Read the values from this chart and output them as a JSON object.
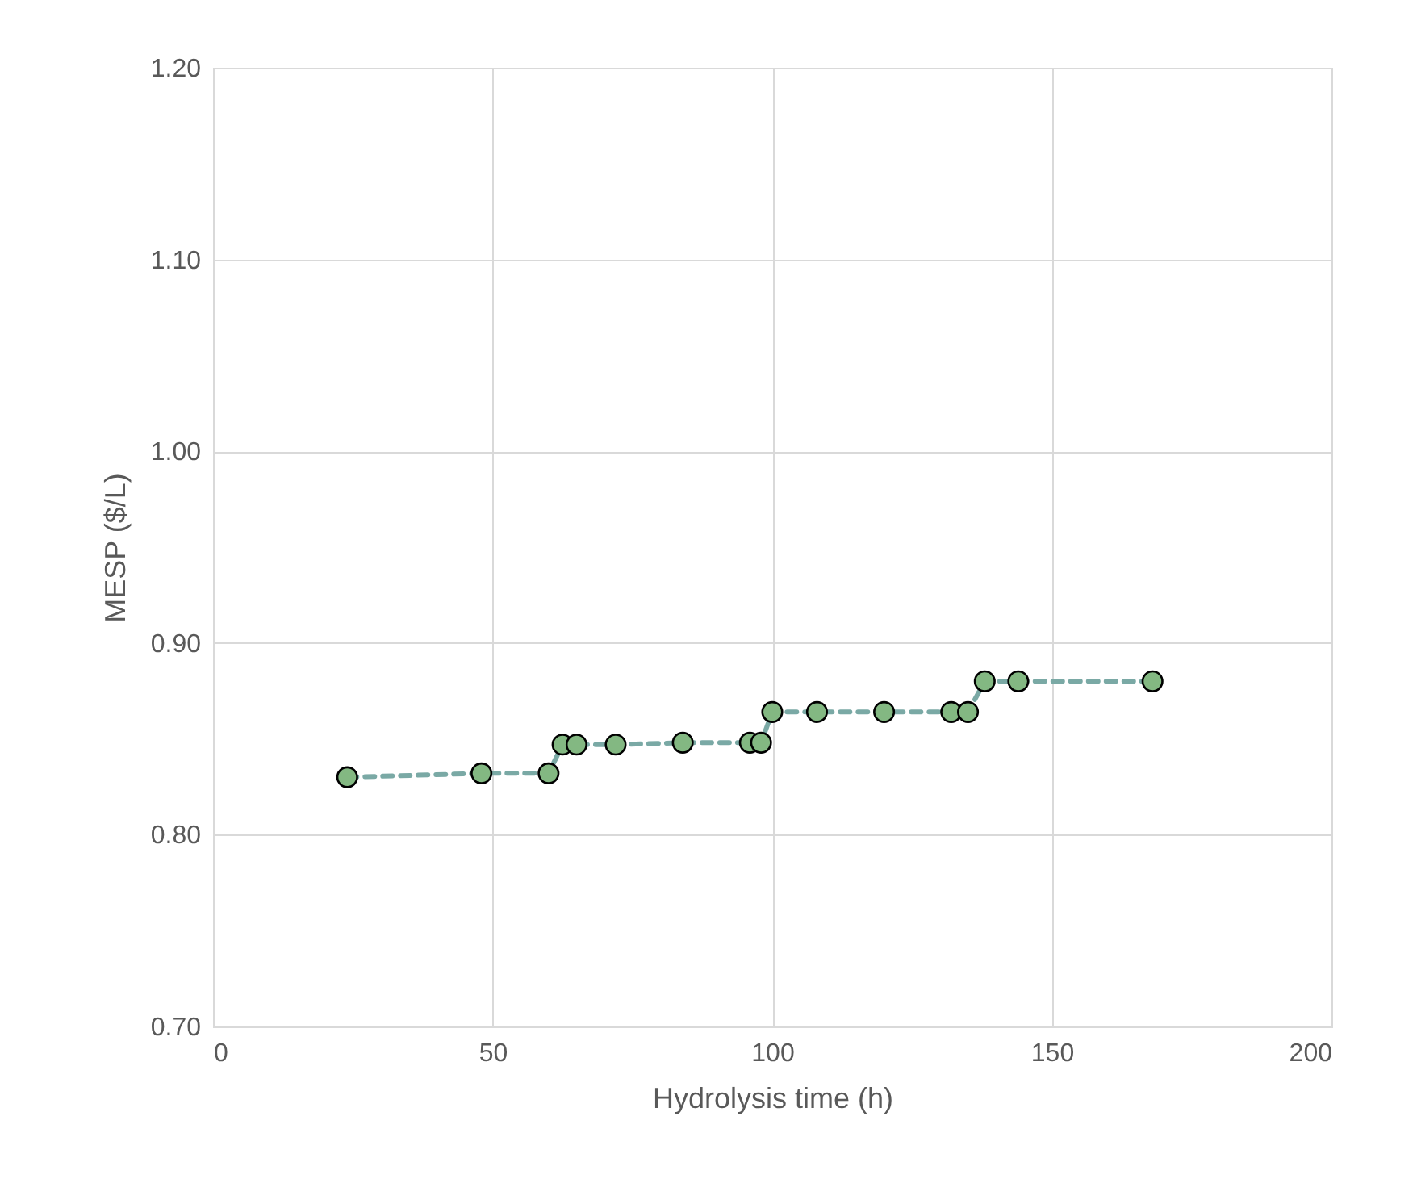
{
  "chart_data": {
    "type": "line",
    "xlabel": "Hydrolysis time (h)",
    "ylabel": "MESP ($/L)",
    "x": [
      24,
      48,
      60,
      62.5,
      65,
      72,
      84,
      96,
      98,
      100,
      108,
      120,
      132,
      135,
      138,
      144,
      168
    ],
    "series": [
      {
        "color": "#7aa9a5",
        "colors": [
          "#83b882",
          "#83b882",
          "#83b882",
          "#83b882",
          "#83b882",
          "#83b882",
          "#83b882",
          "#83b882",
          "#83b882",
          "#83b882",
          "#83b882",
          "#83b882",
          "#83b882",
          "#83b882",
          "#83b882",
          "#83b882",
          "#83b882"
        ],
        "values": [
          0.83,
          0.832,
          0.832,
          0.847,
          0.847,
          0.847,
          0.848,
          0.848,
          0.848,
          0.864,
          0.864,
          0.864,
          0.864,
          0.864,
          0.88,
          0.88,
          0.88
        ]
      }
    ],
    "xlim": [
      0,
      200
    ],
    "xticks": [
      0,
      50,
      100,
      150,
      200
    ],
    "ylim": [
      0.7,
      1.2
    ],
    "yticks": [
      {
        "value": 0.7,
        "label": "0.70"
      },
      {
        "value": 0.8,
        "label": "0.80"
      },
      {
        "value": 0.9,
        "label": "0.90"
      },
      {
        "value": 1.0,
        "label": "1.00"
      },
      {
        "value": 1.1,
        "label": "1.10"
      },
      {
        "value": 1.2,
        "label": "1.20"
      }
    ],
    "grid": true,
    "marker": "circle",
    "line_style": "dashed"
  }
}
